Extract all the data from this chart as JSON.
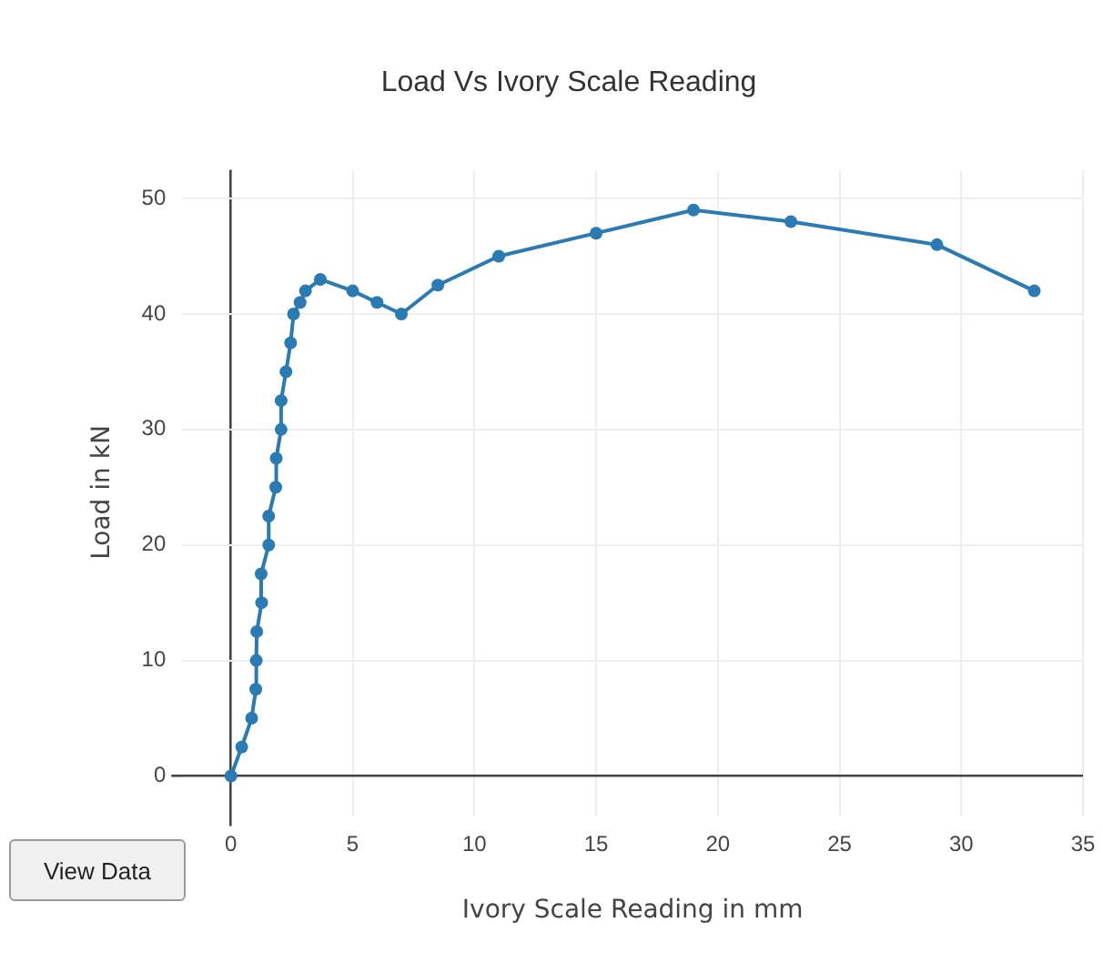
{
  "chart_data": {
    "type": "line",
    "title": "Load Vs Ivory Scale Reading",
    "xlabel": "Ivory Scale Reading in mm",
    "ylabel": "Load in kN",
    "x": [
      0,
      0.44,
      0.85,
      1.02,
      1.04,
      1.06,
      1.26,
      1.24,
      1.55,
      1.55,
      1.84,
      1.86,
      2.06,
      2.06,
      2.26,
      2.45,
      2.57,
      2.84,
      3.06,
      3.67,
      5,
      6,
      7,
      8.5,
      11,
      15,
      19,
      23,
      29,
      33
    ],
    "series": [
      {
        "color": "#2a7ab4",
        "values": [
          0,
          2.5,
          5,
          7.5,
          10,
          12.5,
          15,
          17.5,
          20,
          22.5,
          25,
          27.5,
          30,
          32.5,
          35,
          37.5,
          40,
          41,
          42,
          43,
          42,
          41,
          40,
          42.5,
          45,
          47,
          49,
          48,
          46,
          42
        ]
      }
    ],
    "xlim": [
      -2,
      35
    ],
    "xticks": [
      0,
      5,
      10,
      15,
      20,
      25,
      30,
      35
    ],
    "ylim": [
      -3.4,
      52.5
    ],
    "yticks": [
      0,
      10,
      20,
      30,
      40,
      50
    ],
    "annotations": [
      "View Data"
    ],
    "grid": true,
    "legend": false,
    "marker": "circle",
    "line_style": "solid"
  }
}
